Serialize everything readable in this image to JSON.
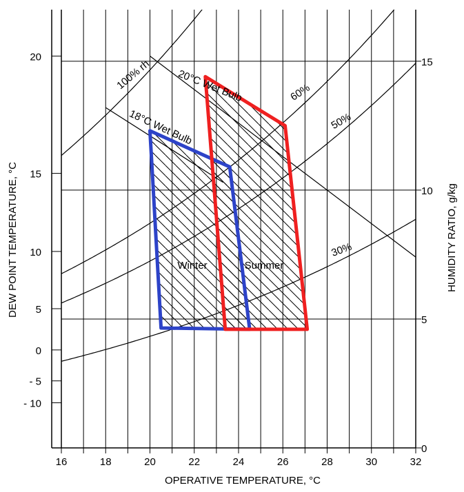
{
  "chart_data": {
    "type": "psychrometric-comfort-chart",
    "xlabel": "OPERATIVE TEMPERATURE,  °C",
    "ylabel_left": "DEW POINT TEMPERATURE,  °C",
    "ylabel_right": "HUMIDITY RATIO,  g/kg",
    "xlim": [
      16,
      32
    ],
    "ylim_right": [
      0,
      17
    ],
    "grid": true,
    "x_ticks": [
      "16",
      "18",
      "20",
      "22",
      "24",
      "26",
      "28",
      "30",
      "32"
    ],
    "right_ticks": [
      {
        "value": 0,
        "label": "0"
      },
      {
        "value": 5,
        "label": "5"
      },
      {
        "value": 10,
        "label": "10"
      },
      {
        "value": 15,
        "label": "15"
      }
    ],
    "left_ticks": [
      {
        "w": 15.2,
        "label": "20"
      },
      {
        "w": 10.65,
        "label": "15"
      },
      {
        "w": 7.62,
        "label": "10"
      },
      {
        "w": 5.4,
        "label": "5"
      },
      {
        "w": 3.8,
        "label": "0"
      },
      {
        "w": 2.6,
        "label": "- 5"
      },
      {
        "w": 1.75,
        "label": "- 10"
      }
    ],
    "rh_curves": [
      {
        "label": "100% rh",
        "rh": 1.0
      },
      {
        "label": "60%",
        "rh": 0.6
      },
      {
        "label": "50%",
        "rh": 0.5
      },
      {
        "label": "30%",
        "rh": 0.3
      }
    ],
    "wet_bulb_lines": [
      {
        "label": "20°C Wet Bulb",
        "points": [
          [
            20,
            15.2
          ],
          [
            32,
            7.4
          ]
        ]
      },
      {
        "label": "18°C Wet Bulb",
        "points": [
          [
            18,
            13.2
          ],
          [
            23.3,
            10.3
          ]
        ]
      }
    ],
    "zones": [
      {
        "name": "Winter",
        "color": "#2d43c8",
        "points": [
          [
            20,
            12.3
          ],
          [
            23.6,
            10.9
          ],
          [
            24.5,
            4.6
          ],
          [
            20.5,
            4.65
          ]
        ]
      },
      {
        "name": "Summer",
        "color": "#ef2020",
        "points": [
          [
            22.5,
            14.4
          ],
          [
            26.1,
            12.5
          ],
          [
            27.1,
            4.6
          ],
          [
            23.4,
            4.6
          ]
        ]
      }
    ]
  }
}
